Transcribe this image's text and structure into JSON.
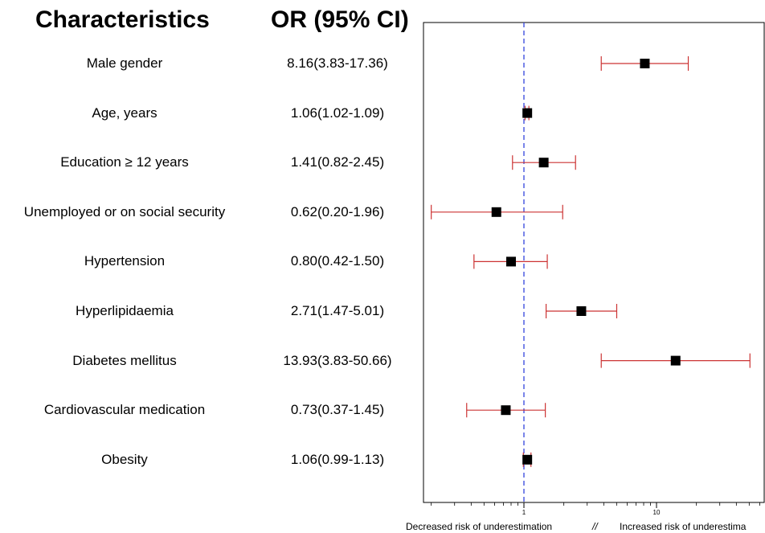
{
  "headers": {
    "characteristics": "Characteristics",
    "or_ci": "OR (95% CI)"
  },
  "chart_data": {
    "type": "forest",
    "x_scale": "log",
    "xlim": [
      0.19,
      75
    ],
    "reference_line": 1,
    "x_ticks": [
      {
        "value": 1,
        "label": "1"
      },
      {
        "value": 10,
        "label": "10"
      }
    ],
    "x_minor_ticks": [
      0.2,
      0.3,
      0.4,
      0.5,
      0.6,
      0.7,
      0.8,
      0.9,
      2,
      3,
      4,
      5,
      6,
      7,
      8,
      9,
      20,
      30,
      40,
      50,
      60,
      70
    ],
    "axis_caption_left": "Decreased risk of underestimation",
    "axis_caption_sep": "//",
    "axis_caption_right": "Increased risk of underestima",
    "rows": [
      {
        "label": "Male gender",
        "or_text": "8.16(3.83-17.36)",
        "or": 8.16,
        "lo": 3.83,
        "hi": 17.36
      },
      {
        "label": "Age, years",
        "or_text": "1.06(1.02-1.09)",
        "or": 1.06,
        "lo": 1.02,
        "hi": 1.09
      },
      {
        "label": "Education ≥ 12 years",
        "or_text": "1.41(0.82-2.45)",
        "or": 1.41,
        "lo": 0.82,
        "hi": 2.45
      },
      {
        "label": "Unemployed or on social security",
        "or_text": "0.62(0.20-1.96)",
        "or": 0.62,
        "lo": 0.2,
        "hi": 1.96
      },
      {
        "label": "Hypertension",
        "or_text": "0.80(0.42-1.50)",
        "or": 0.8,
        "lo": 0.42,
        "hi": 1.5
      },
      {
        "label": "Hyperlipidaemia",
        "or_text": "2.71(1.47-5.01)",
        "or": 2.71,
        "lo": 1.47,
        "hi": 5.01
      },
      {
        "label": "Diabetes mellitus",
        "or_text": "13.93(3.83-50.66)",
        "or": 13.93,
        "lo": 3.83,
        "hi": 50.66
      },
      {
        "label": "Cardiovascular medication",
        "or_text": "0.73(0.37-1.45)",
        "or": 0.73,
        "lo": 0.37,
        "hi": 1.45
      },
      {
        "label": "Obesity",
        "or_text": "1.06(0.99-1.13)",
        "or": 1.06,
        "lo": 0.99,
        "hi": 1.13
      }
    ],
    "colors": {
      "ci_line": "#cc3333",
      "point": "#000000",
      "reference_line": "#3344dd",
      "frame": "#000000"
    }
  }
}
